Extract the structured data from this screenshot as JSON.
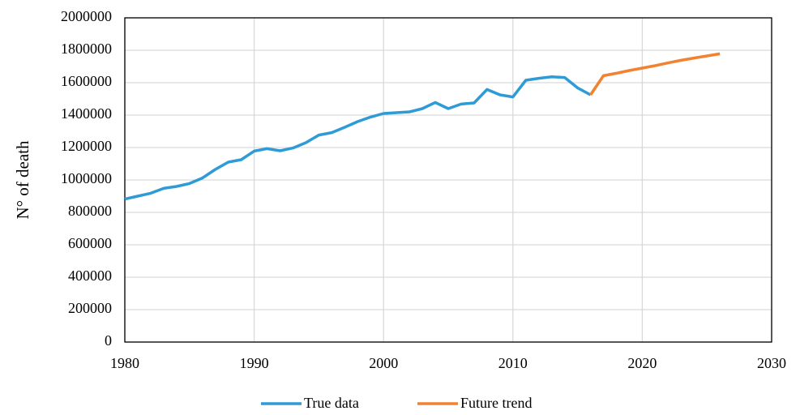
{
  "chart_data": {
    "type": "line",
    "y_label": "N° of death",
    "series": [
      {
        "name": "True data",
        "color": "#2e9bd6",
        "x": [
          1980,
          1981,
          1982,
          1983,
          1984,
          1985,
          1986,
          1987,
          1988,
          1989,
          1990,
          1991,
          1992,
          1993,
          1994,
          1995,
          1996,
          1997,
          1998,
          1999,
          2000,
          2001,
          2002,
          2003,
          2004,
          2005,
          2006,
          2007,
          2008,
          2009,
          2010,
          2011,
          2012,
          2013,
          2014,
          2015,
          2016
        ],
        "values": [
          882000,
          900000,
          918000,
          948000,
          960000,
          978000,
          1012000,
          1065000,
          1110000,
          1125000,
          1178000,
          1193000,
          1180000,
          1197000,
          1230000,
          1277000,
          1292000,
          1325000,
          1360000,
          1388000,
          1410000,
          1415000,
          1420000,
          1440000,
          1478000,
          1440000,
          1468000,
          1475000,
          1558000,
          1525000,
          1512000,
          1615000,
          1627000,
          1636000,
          1632000,
          1568000,
          1525000
        ]
      },
      {
        "name": "Future trend",
        "color": "#f28130",
        "x": [
          2016,
          2017,
          2018,
          2019,
          2020,
          2021,
          2022,
          2023,
          2024,
          2025,
          2026
        ],
        "values": [
          1525000,
          1643000,
          1658000,
          1675000,
          1690000,
          1705000,
          1722000,
          1738000,
          1752000,
          1765000,
          1778000
        ]
      }
    ],
    "xlim": [
      1980,
      2030
    ],
    "xticks": [
      1980,
      1990,
      2000,
      2010,
      2020,
      2030
    ],
    "ylim": [
      0,
      2000000
    ],
    "yticks": [
      0,
      200000,
      400000,
      600000,
      800000,
      1000000,
      1200000,
      1400000,
      1600000,
      1800000,
      2000000
    ],
    "grid": true,
    "legend": "bottom"
  }
}
